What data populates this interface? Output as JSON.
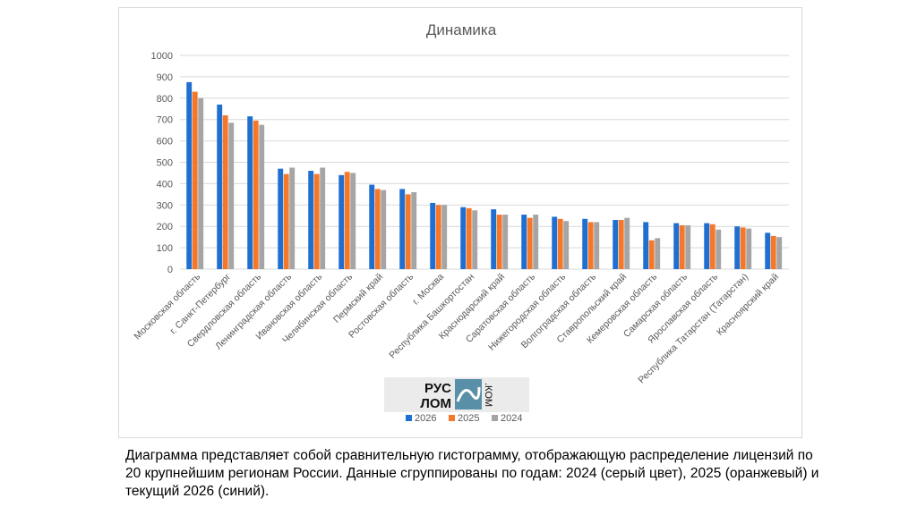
{
  "chart_data": {
    "type": "bar",
    "title": "Динамика",
    "xlabel": "",
    "ylabel": "",
    "ylim": [
      0,
      1000
    ],
    "yticks": [
      0,
      100,
      200,
      300,
      400,
      500,
      600,
      700,
      800,
      900,
      1000
    ],
    "grid": true,
    "legend_position": "bottom",
    "categories": [
      "Московская область",
      "г. Санкт-Петербург",
      "Свердловская область",
      "Ленинградская область",
      "Ивановская область",
      "Челябинская область",
      "Пермский край",
      "Ростовская область",
      "г. Москва",
      "Республика Башкортостан",
      "Краснодарский край",
      "Саратовская область",
      "Нижегородская область",
      "Волгоградская область",
      "Ставропольский край",
      "Кемеровская область",
      "Самарская область",
      "Ярославская область",
      "Республика Татарстан (Татарстан)",
      "Красноярский край"
    ],
    "series": [
      {
        "name": "2026",
        "color": "#1f6fd0",
        "values": [
          875,
          770,
          715,
          470,
          460,
          440,
          395,
          375,
          310,
          290,
          280,
          255,
          245,
          235,
          230,
          220,
          215,
          215,
          200,
          170
        ]
      },
      {
        "name": "2025",
        "color": "#f5782a",
        "values": [
          830,
          720,
          695,
          445,
          445,
          455,
          375,
          350,
          300,
          285,
          255,
          240,
          235,
          220,
          230,
          135,
          205,
          210,
          195,
          155
        ]
      },
      {
        "name": "2024",
        "color": "#a5a5a5",
        "values": [
          800,
          685,
          675,
          475,
          475,
          450,
          370,
          360,
          300,
          275,
          255,
          255,
          225,
          220,
          240,
          145,
          205,
          185,
          190,
          150
        ]
      }
    ]
  },
  "logo": {
    "line1": "РУС",
    "line2": "ЛОМ",
    "suffix": ".КОМ"
  },
  "caption": "Диаграмма представляет собой сравнительную гистограмму, отображающую распределение лицензий по 20 крупнейшим регионам России. Данные сгруппированы по годам: 2024 (серый цвет), 2025 (оранжевый) и текущий 2026 (синий)."
}
